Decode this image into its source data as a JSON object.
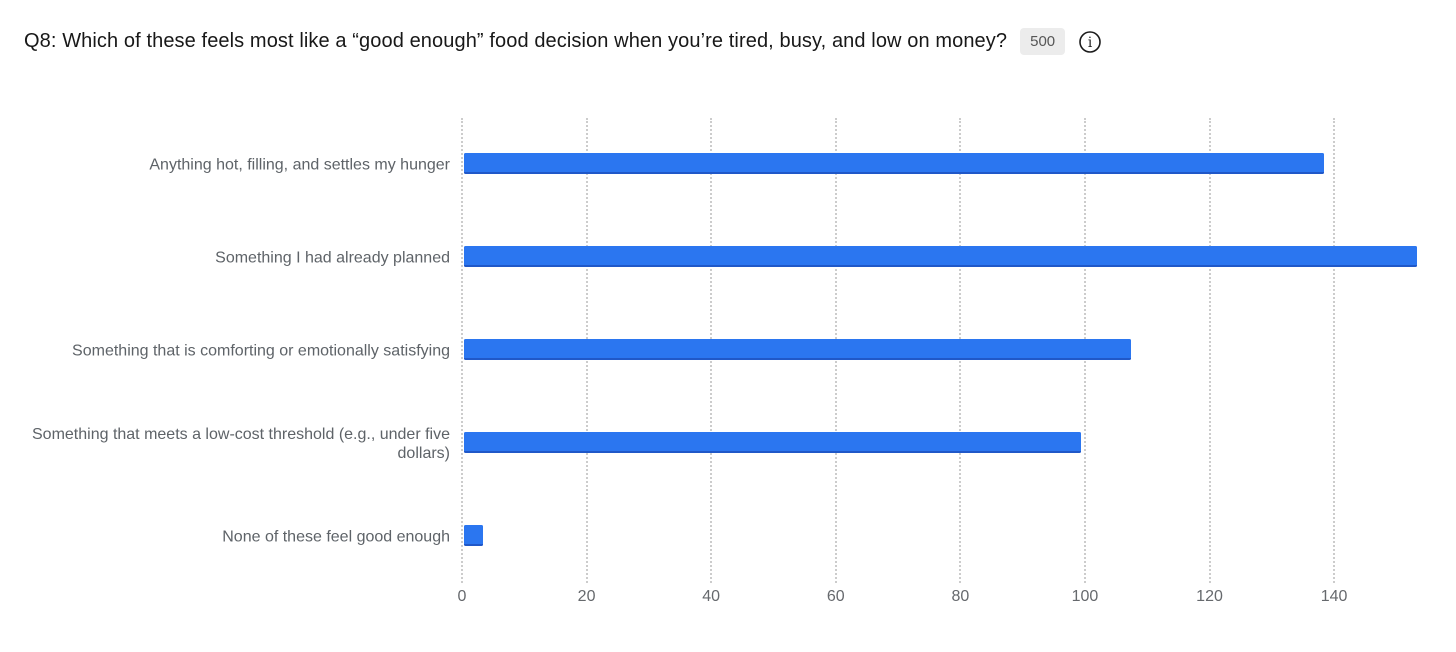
{
  "header": {
    "title": "Q8: Which of these feels most like a “good enough” food decision when you’re tired, busy, and low on money?",
    "response_count": "500",
    "info_icon": "info-circle-icon"
  },
  "colors": {
    "bar": "#2b76f0",
    "bar_edge": "#2058c8",
    "gridline": "#cccccc",
    "category_text": "#5e6368",
    "tick_text": "#66696d",
    "title_text": "#181818",
    "badge_bg": "#ececec",
    "badge_text": "#565656"
  },
  "chart_data": {
    "type": "bar",
    "orientation": "horizontal",
    "title": "Q8: Which of these feels most like a “good enough” food decision when you’re tired, busy, and low on money?",
    "categories": [
      "Anything hot, filling, and settles my hunger",
      "Something I had already planned",
      "Something that is comforting or emotionally satisfying",
      "Something that meets a low-cost threshold (e.g., under five dollars)",
      "None of these feel good enough"
    ],
    "values": [
      138,
      153,
      107,
      99,
      3
    ],
    "total_responses": 500,
    "xlabel": "",
    "ylabel": "",
    "xlim": [
      0,
      157
    ],
    "x_ticks": [
      0,
      20,
      40,
      60,
      80,
      100,
      120,
      140
    ],
    "grid": "vertical-dotted",
    "legend": "none",
    "bar_color": "#2b76f0"
  }
}
